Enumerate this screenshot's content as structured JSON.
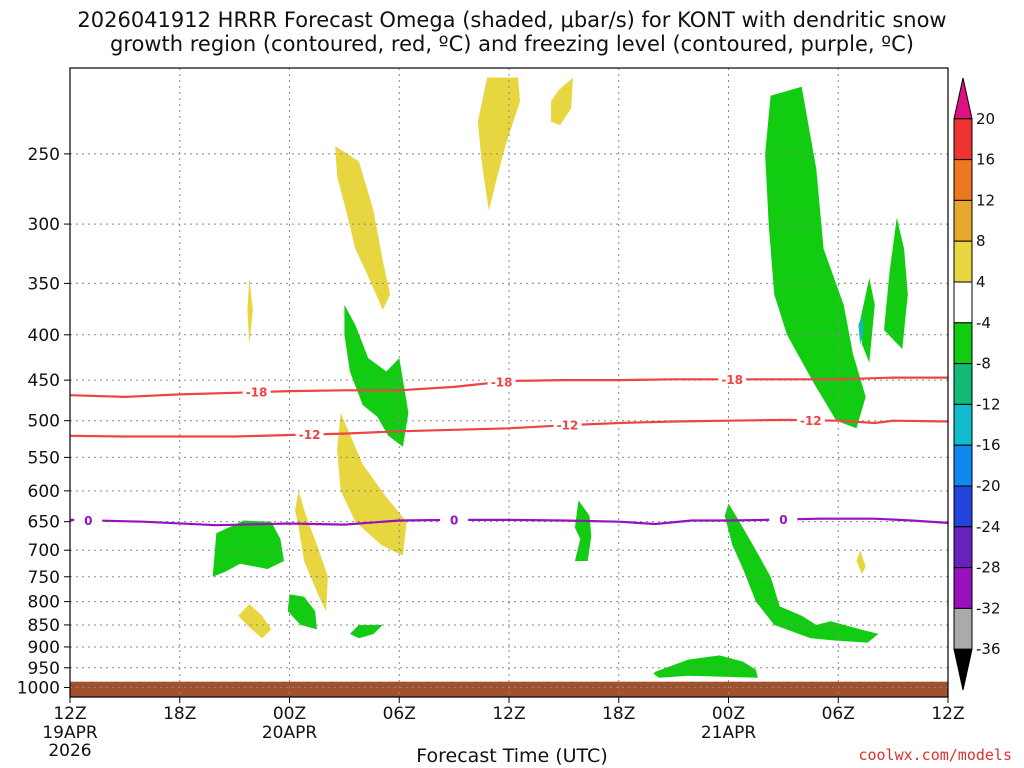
{
  "chart_data": {
    "type": "contour",
    "title_line1": "2026041912 HRRR Forecast Omega (shaded, μbar/s) for KONT with dendritic snow",
    "title_line2": "growth region (contoured, red, ºC) and freezing level (contoured, purple, ºC)",
    "xlabel": "Forecast Time (UTC)",
    "x_ticks": [
      {
        "h": 0,
        "label": "12Z",
        "sub1": "19APR",
        "sub2": "2026"
      },
      {
        "h": 6,
        "label": "18Z",
        "sub1": "",
        "sub2": ""
      },
      {
        "h": 12,
        "label": "00Z",
        "sub1": "20APR",
        "sub2": ""
      },
      {
        "h": 18,
        "label": "06Z",
        "sub1": "",
        "sub2": ""
      },
      {
        "h": 24,
        "label": "12Z",
        "sub1": "",
        "sub2": ""
      },
      {
        "h": 30,
        "label": "18Z",
        "sub1": "",
        "sub2": ""
      },
      {
        "h": 36,
        "label": "00Z",
        "sub1": "21APR",
        "sub2": ""
      },
      {
        "h": 42,
        "label": "06Z",
        "sub1": "",
        "sub2": ""
      },
      {
        "h": 48,
        "label": "12Z",
        "sub1": "",
        "sub2": ""
      }
    ],
    "xlim": [
      0,
      48
    ],
    "y_ticks": [
      250,
      300,
      350,
      400,
      450,
      500,
      550,
      600,
      650,
      700,
      750,
      800,
      850,
      900,
      950,
      1000
    ],
    "ylim": [
      1025,
      200
    ],
    "ylabel": "",
    "colorbar": {
      "labels": [
        "20",
        "16",
        "12",
        "8",
        "4",
        "-4",
        "-8",
        "-12",
        "-16",
        "-20",
        "-24",
        "-28",
        "-32",
        "-36"
      ],
      "colors": [
        "#dd1180",
        "#ee3333",
        "#ee7722",
        "#e8a830",
        "#e8d640",
        "#ffffff",
        "#11cc11",
        "#11bb77",
        "#11bbcc",
        "#1188ee",
        "#2244dd",
        "#6622bb",
        "#9911bb",
        "#aaaaaa",
        "#000000"
      ]
    },
    "contours": {
      "minus18": {
        "label": "-18",
        "color": "#ee4444",
        "points": [
          [
            0,
            468
          ],
          [
            3,
            470
          ],
          [
            6,
            467
          ],
          [
            9,
            465
          ],
          [
            12,
            463
          ],
          [
            15,
            462
          ],
          [
            18,
            462
          ],
          [
            21,
            458
          ],
          [
            24,
            451
          ],
          [
            27,
            450
          ],
          [
            30,
            450
          ],
          [
            33,
            449
          ],
          [
            36,
            449
          ],
          [
            39,
            449
          ],
          [
            42,
            449
          ],
          [
            45,
            447
          ],
          [
            48,
            447
          ]
        ],
        "label_h": [
          10.2,
          23.6,
          36.2
        ]
      },
      "minus12": {
        "label": "-12",
        "color": "#ee4444",
        "points": [
          [
            0,
            520
          ],
          [
            3,
            521
          ],
          [
            6,
            521
          ],
          [
            9,
            521
          ],
          [
            12,
            519
          ],
          [
            15,
            517
          ],
          [
            18,
            514
          ],
          [
            21,
            512
          ],
          [
            24,
            510
          ],
          [
            27,
            506
          ],
          [
            30,
            503
          ],
          [
            33,
            501
          ],
          [
            36,
            500
          ],
          [
            39,
            499
          ],
          [
            42,
            500
          ],
          [
            44,
            503
          ],
          [
            45,
            500
          ],
          [
            48,
            501
          ]
        ],
        "label_h": [
          13.1,
          27.2,
          40.5
        ]
      },
      "zero": {
        "label": "0",
        "color": "#9911bb",
        "points": [
          [
            0,
            647
          ],
          [
            4,
            650
          ],
          [
            8,
            656
          ],
          [
            12,
            653
          ],
          [
            15,
            655
          ],
          [
            18,
            648
          ],
          [
            21,
            647
          ],
          [
            24,
            647
          ],
          [
            27,
            648
          ],
          [
            30,
            650
          ],
          [
            32,
            654
          ],
          [
            34,
            648
          ],
          [
            36,
            648
          ],
          [
            38,
            647
          ],
          [
            41,
            645
          ],
          [
            44,
            645
          ],
          [
            46,
            648
          ],
          [
            48,
            652
          ]
        ],
        "label_h": [
          1,
          21,
          39
        ]
      }
    },
    "ground_pressure": 985,
    "ground_color": "#a0522d",
    "omega_regions": [
      {
        "name": "a",
        "level": 4,
        "pts": [
          [
            22.8,
            205
          ],
          [
            24.5,
            205
          ],
          [
            24.6,
            218
          ],
          [
            23.8,
            245
          ],
          [
            23.3,
            268
          ],
          [
            22.9,
            290
          ],
          [
            22.5,
            255
          ],
          [
            22.3,
            230
          ]
        ]
      },
      {
        "name": "b",
        "level": 4,
        "pts": [
          [
            26.7,
            212
          ],
          [
            27.5,
            205
          ],
          [
            27.4,
            222
          ],
          [
            26.8,
            232
          ],
          [
            26.3,
            230
          ],
          [
            26.3,
            218
          ]
        ]
      },
      {
        "name": "c",
        "level": 4,
        "pts": [
          [
            14.5,
            245
          ],
          [
            15.8,
            255
          ],
          [
            16.6,
            290
          ],
          [
            17.1,
            330
          ],
          [
            17.5,
            360
          ],
          [
            17.1,
            375
          ],
          [
            16.2,
            340
          ],
          [
            15.6,
            320
          ],
          [
            15.1,
            290
          ],
          [
            14.6,
            265
          ]
        ]
      },
      {
        "name": "d",
        "level": 4,
        "pts": [
          [
            9.8,
            345
          ],
          [
            10.0,
            375
          ],
          [
            9.8,
            410
          ],
          [
            9.7,
            375
          ]
        ]
      },
      {
        "name": "e",
        "level": 4,
        "pts": [
          [
            14.8,
            490
          ],
          [
            16.0,
            560
          ],
          [
            17.3,
            610
          ],
          [
            18.4,
            650
          ],
          [
            18.2,
            710
          ],
          [
            17.0,
            690
          ],
          [
            15.6,
            650
          ],
          [
            14.8,
            600
          ],
          [
            14.6,
            540
          ]
        ]
      },
      {
        "name": "f",
        "level": 4,
        "pts": [
          [
            12.5,
            600
          ],
          [
            12.9,
            640
          ],
          [
            13.5,
            690
          ],
          [
            14.1,
            750
          ],
          [
            14.0,
            820
          ],
          [
            13.5,
            780
          ],
          [
            12.8,
            720
          ],
          [
            12.5,
            660
          ],
          [
            12.3,
            630
          ]
        ]
      },
      {
        "name": "g",
        "level": 4,
        "pts": [
          [
            9.8,
            805
          ],
          [
            10.5,
            830
          ],
          [
            11.0,
            860
          ],
          [
            10.5,
            880
          ],
          [
            9.8,
            855
          ],
          [
            9.2,
            830
          ]
        ]
      },
      {
        "name": "h",
        "level": 4,
        "pts": [
          [
            43.2,
            700
          ],
          [
            43.5,
            730
          ],
          [
            43.3,
            745
          ],
          [
            43.0,
            720
          ]
        ]
      },
      {
        "name": "i",
        "level": -8,
        "pts": [
          [
            15.0,
            370
          ],
          [
            15.6,
            390
          ],
          [
            16.3,
            425
          ],
          [
            17.3,
            440
          ],
          [
            18.0,
            425
          ],
          [
            18.5,
            490
          ],
          [
            18.2,
            535
          ],
          [
            17.4,
            520
          ],
          [
            16.8,
            495
          ],
          [
            16.0,
            480
          ],
          [
            15.3,
            440
          ],
          [
            15.0,
            400
          ]
        ]
      },
      {
        "name": "j",
        "level": -8,
        "pts": [
          [
            8.0,
            670
          ],
          [
            9.5,
            648
          ],
          [
            11.0,
            650
          ],
          [
            11.5,
            680
          ],
          [
            11.7,
            720
          ],
          [
            10.8,
            735
          ],
          [
            9.3,
            725
          ],
          [
            8.5,
            740
          ],
          [
            7.8,
            750
          ]
        ]
      },
      {
        "name": "k",
        "level": -8,
        "pts": [
          [
            12.0,
            785
          ],
          [
            12.8,
            790
          ],
          [
            13.4,
            820
          ],
          [
            13.5,
            860
          ],
          [
            12.6,
            850
          ],
          [
            11.9,
            820
          ]
        ]
      },
      {
        "name": "l",
        "level": -8,
        "pts": [
          [
            15.8,
            850
          ],
          [
            17.1,
            850
          ],
          [
            16.6,
            870
          ],
          [
            15.8,
            880
          ],
          [
            15.3,
            870
          ]
        ]
      },
      {
        "name": "m",
        "level": -8,
        "pts": [
          [
            27.8,
            615
          ],
          [
            28.4,
            640
          ],
          [
            28.5,
            675
          ],
          [
            28.3,
            720
          ],
          [
            27.6,
            720
          ],
          [
            27.9,
            680
          ],
          [
            27.6,
            660
          ]
        ]
      },
      {
        "name": "n",
        "level": -8,
        "pts": [
          [
            38.3,
            215
          ],
          [
            40.0,
            210
          ],
          [
            40.8,
            260
          ],
          [
            41.2,
            320
          ],
          [
            42.3,
            370
          ],
          [
            42.8,
            420
          ],
          [
            43.5,
            470
          ],
          [
            43.0,
            510
          ],
          [
            41.9,
            500
          ],
          [
            40.7,
            455
          ],
          [
            39.2,
            400
          ],
          [
            38.5,
            360
          ],
          [
            38.2,
            300
          ],
          [
            38.0,
            250
          ]
        ]
      },
      {
        "name": "o",
        "level": -8,
        "pts": [
          [
            43.2,
            385
          ],
          [
            43.7,
            345
          ],
          [
            44.0,
            370
          ],
          [
            43.7,
            430
          ],
          [
            43.3,
            410
          ]
        ]
      },
      {
        "name": "p",
        "level": -8,
        "pts": [
          [
            45.2,
            295
          ],
          [
            45.6,
            320
          ],
          [
            45.8,
            360
          ],
          [
            45.5,
            415
          ],
          [
            44.5,
            395
          ],
          [
            44.8,
            340
          ]
        ]
      },
      {
        "name": "q",
        "level": -8,
        "pts": [
          [
            36.0,
            620
          ],
          [
            36.6,
            650
          ],
          [
            37.5,
            700
          ],
          [
            38.3,
            750
          ],
          [
            38.8,
            810
          ],
          [
            40.0,
            830
          ],
          [
            40.8,
            850
          ],
          [
            41.6,
            842
          ],
          [
            43.2,
            860
          ],
          [
            44.2,
            870
          ],
          [
            43.6,
            890
          ],
          [
            41.8,
            885
          ],
          [
            40.5,
            880
          ],
          [
            38.5,
            850
          ],
          [
            37.5,
            800
          ],
          [
            36.8,
            735
          ],
          [
            36.2,
            690
          ],
          [
            35.8,
            640
          ]
        ]
      },
      {
        "name": "r",
        "level": -8,
        "pts": [
          [
            32.0,
            960
          ],
          [
            33.8,
            930
          ],
          [
            35.5,
            920
          ],
          [
            36.8,
            935
          ],
          [
            37.5,
            955
          ],
          [
            37.6,
            975
          ],
          [
            35.5,
            972
          ],
          [
            33.8,
            970
          ],
          [
            32.2,
            975
          ],
          [
            31.9,
            965
          ]
        ]
      },
      {
        "name": "s",
        "level": -12,
        "pts": [
          [
            43.1,
            390
          ],
          [
            43.3,
            380
          ],
          [
            43.4,
            395
          ],
          [
            43.2,
            410
          ]
        ]
      }
    ],
    "credit": "coolwx.com/models"
  }
}
